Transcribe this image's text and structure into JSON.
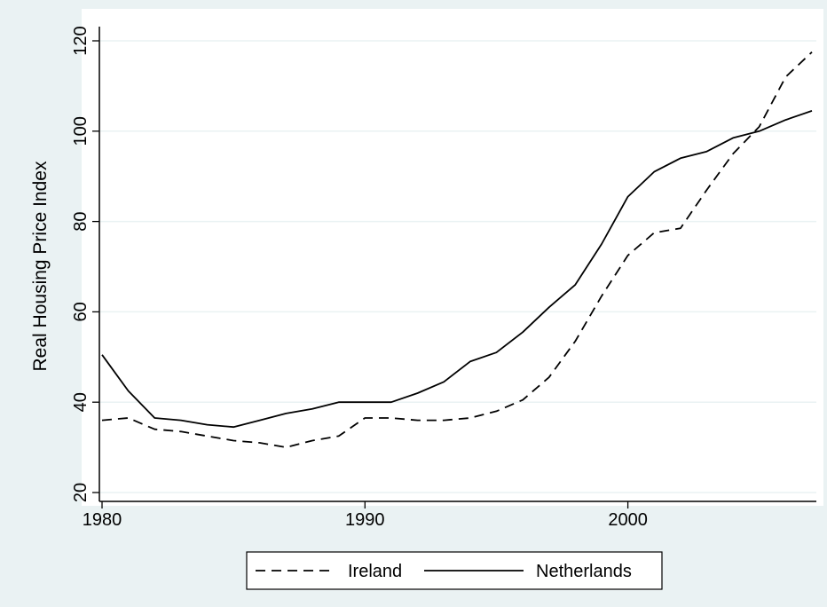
{
  "chart_data": {
    "type": "line",
    "ylabel": "Real Housing Price Index",
    "xlim": [
      1980,
      2007
    ],
    "ylim": [
      20,
      120
    ],
    "xticks": [
      1980,
      1990,
      2000
    ],
    "yticks": [
      20,
      40,
      60,
      80,
      100,
      120
    ],
    "grid": "horizontal",
    "legend_position": "bottom",
    "x": [
      1980,
      1981,
      1982,
      1983,
      1984,
      1985,
      1986,
      1987,
      1988,
      1989,
      1990,
      1991,
      1992,
      1993,
      1994,
      1995,
      1996,
      1997,
      1998,
      1999,
      2000,
      2001,
      2002,
      2003,
      2004,
      2005,
      2006,
      2007
    ],
    "series": [
      {
        "name": "Ireland",
        "style": "dashed",
        "values": [
          36,
          36.5,
          34,
          33.5,
          32.5,
          31.5,
          31,
          30,
          31.5,
          32.5,
          36.5,
          36.5,
          36,
          36,
          36.5,
          38,
          40.5,
          45.5,
          53.5,
          63.5,
          72.5,
          77.5,
          78.5,
          87,
          95,
          101,
          112,
          117.5
        ]
      },
      {
        "name": "Netherlands",
        "style": "solid",
        "values": [
          50.5,
          42.5,
          36.5,
          36,
          35,
          34.5,
          36,
          37.5,
          38.5,
          40,
          40,
          40,
          42,
          44.5,
          49,
          51,
          55.5,
          61,
          66,
          75,
          85.5,
          91,
          94,
          95.5,
          98.5,
          100,
          102.5,
          104.5
        ]
      }
    ],
    "colors": {
      "background": "#eaf2f3",
      "plot_area": "#ffffff",
      "grid": "#eaf2f3",
      "line": "#000000"
    }
  }
}
